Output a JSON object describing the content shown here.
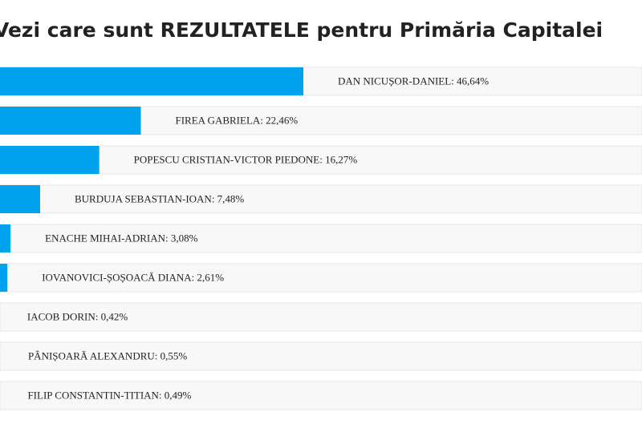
{
  "chart_data": {
    "type": "bar",
    "title": "Vezi care sunt REZULTATELE pentru Primăria Capitalei",
    "values": [
      46.64,
      22.46,
      16.27,
      7.48,
      3.08,
      2.61,
      0.42,
      0.55,
      0.49
    ],
    "value_labels": [
      "DAN NICUȘOR-DANIEL: 46,64%",
      "FIREA GABRIELA: 22,46%",
      "POPESCU CRISTIAN-VICTOR PIEDONE: 16,27%",
      "BURDUJA SEBASTIAN-IOAN: 7,48%",
      "ENACHE MIHAI-ADRIAN: 3,08%",
      "IOVANOVICI-ȘOȘOACĂ DIANA: 2,61%",
      "IACOB DORIN: 0,42%",
      "PÂNIȘOARĂ ALEXANDRU: 0,55%",
      "FILIP CONSTANTIN-TITIAN: 0,49%"
    ],
    "color": "#00a2ed"
  }
}
